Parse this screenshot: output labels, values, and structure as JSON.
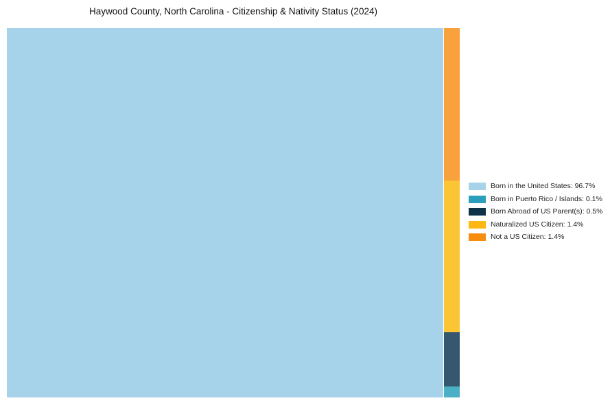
{
  "title": "Haywood County, North Carolina - Citizenship & Nativity Status (2024)",
  "chart_data": {
    "type": "treemap",
    "title": "Haywood County, North Carolina - Citizenship & Nativity Status (2024)",
    "unit": "%",
    "legend_position": "right",
    "categories": [
      "Born in the United States",
      "Born in Puerto Rico / Islands",
      "Born Abroad of US Parent(s)",
      "Naturalized US Citizen",
      "Not a US Citizen"
    ],
    "values": [
      96.7,
      0.1,
      0.5,
      1.4,
      1.4
    ]
  },
  "treemap": {
    "main_tile": {
      "name": "Born in the United States",
      "value": 96.7,
      "color": "#A6D3EA"
    },
    "column_tiles": [
      {
        "name": "Not a US Citizen",
        "value": 1.4,
        "color": "#F9A13C"
      },
      {
        "name": "Naturalized US Citizen",
        "value": 1.4,
        "color": "#FCC535"
      },
      {
        "name": "Born Abroad of US Parent(s)",
        "value": 0.5,
        "color": "#35586E"
      },
      {
        "name": "Born in Puerto Rico / Islands",
        "value": 0.1,
        "color": "#4BB0C6"
      }
    ]
  },
  "legend": {
    "items": [
      {
        "label": "Born in the United States: 96.7%",
        "swatch_color": "#A7D3EA"
      },
      {
        "label": "Born in Puerto Rico / Islands: 0.1%",
        "swatch_color": "#2B9EBC"
      },
      {
        "label": "Born Abroad of US Parent(s): 0.5%",
        "swatch_color": "#0E3349"
      },
      {
        "label": "Naturalized US Citizen: 1.4%",
        "swatch_color": "#FDB813"
      },
      {
        "label": "Not a US Citizen: 1.4%",
        "swatch_color": "#F78D0E"
      }
    ]
  }
}
